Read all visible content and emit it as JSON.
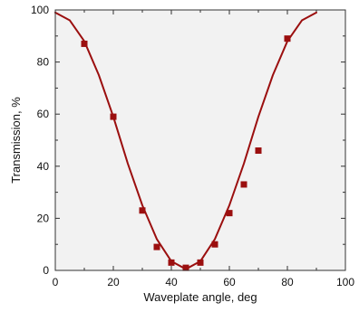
{
  "chart_data": {
    "type": "scatter",
    "title": "",
    "xlabel": "Waveplate angle, deg",
    "ylabel": "Transmission, %",
    "xlim": [
      0,
      100
    ],
    "ylim": [
      0,
      100
    ],
    "x_ticks": [
      0,
      20,
      40,
      60,
      80,
      100
    ],
    "y_ticks": [
      0,
      20,
      40,
      60,
      80,
      100
    ],
    "grid": false,
    "legend": "none",
    "colors": {
      "plot_background": "#f2f2f2",
      "series": "#9b0f0f",
      "axis": "#333333"
    },
    "series": [
      {
        "kind": "scatter",
        "marker": "square",
        "points": [
          {
            "x": 10,
            "y": 87
          },
          {
            "x": 20,
            "y": 59
          },
          {
            "x": 30,
            "y": 23
          },
          {
            "x": 35,
            "y": 9
          },
          {
            "x": 40,
            "y": 3
          },
          {
            "x": 45,
            "y": 1
          },
          {
            "x": 50,
            "y": 3
          },
          {
            "x": 55,
            "y": 10
          },
          {
            "x": 60,
            "y": 22
          },
          {
            "x": 65,
            "y": 33
          },
          {
            "x": 70,
            "y": 46
          },
          {
            "x": 80,
            "y": 89
          }
        ]
      },
      {
        "kind": "line",
        "points": [
          {
            "x": 0,
            "y": 99
          },
          {
            "x": 5,
            "y": 96
          },
          {
            "x": 10,
            "y": 88
          },
          {
            "x": 15,
            "y": 75
          },
          {
            "x": 20,
            "y": 59
          },
          {
            "x": 25,
            "y": 41
          },
          {
            "x": 30,
            "y": 25
          },
          {
            "x": 35,
            "y": 12
          },
          {
            "x": 40,
            "y": 3.5
          },
          {
            "x": 45,
            "y": 0.5
          },
          {
            "x": 50,
            "y": 3.5
          },
          {
            "x": 55,
            "y": 12
          },
          {
            "x": 60,
            "y": 25
          },
          {
            "x": 65,
            "y": 41
          },
          {
            "x": 70,
            "y": 59
          },
          {
            "x": 75,
            "y": 75
          },
          {
            "x": 80,
            "y": 88
          },
          {
            "x": 85,
            "y": 96
          },
          {
            "x": 90,
            "y": 99
          }
        ]
      }
    ]
  }
}
